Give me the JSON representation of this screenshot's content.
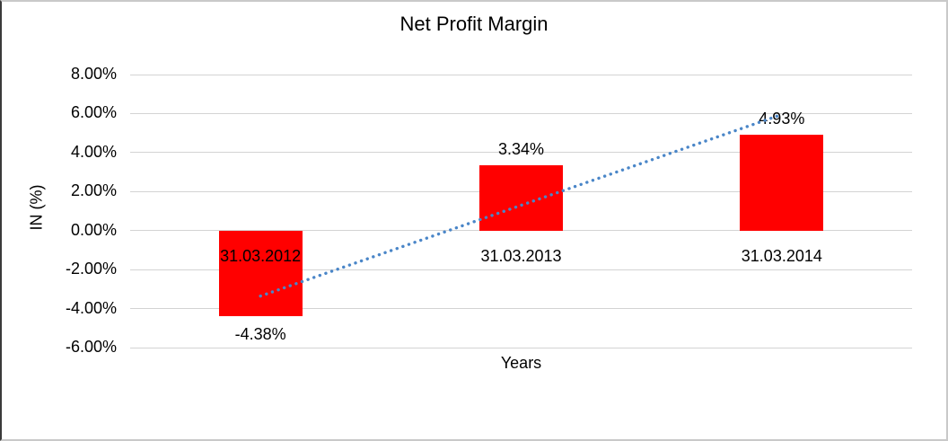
{
  "chart_data": {
    "type": "bar",
    "title": "Net Profit Margin",
    "xlabel": "Years",
    "ylabel": "IN (%)",
    "categories": [
      "31.03.2012",
      "31.03.2013",
      "31.03.2014"
    ],
    "values": [
      -4.38,
      3.34,
      4.93
    ],
    "data_labels": [
      "-4.38%",
      "3.34%",
      "4.93%"
    ],
    "ylim": [
      -6,
      8
    ],
    "ytick_step": 2,
    "ytick_labels": [
      "8.00%",
      "6.00%",
      "4.00%",
      "2.00%",
      "0.00%",
      "-2.00%",
      "-4.00%",
      "-6.00%"
    ],
    "grid": true,
    "legend": "none",
    "bar_color": "#FF0000",
    "gridline_color": "#D3D3D3",
    "text_color": "#000000",
    "trendline": {
      "type": "linear",
      "style": "dotted",
      "color": "#4A86C8"
    }
  }
}
